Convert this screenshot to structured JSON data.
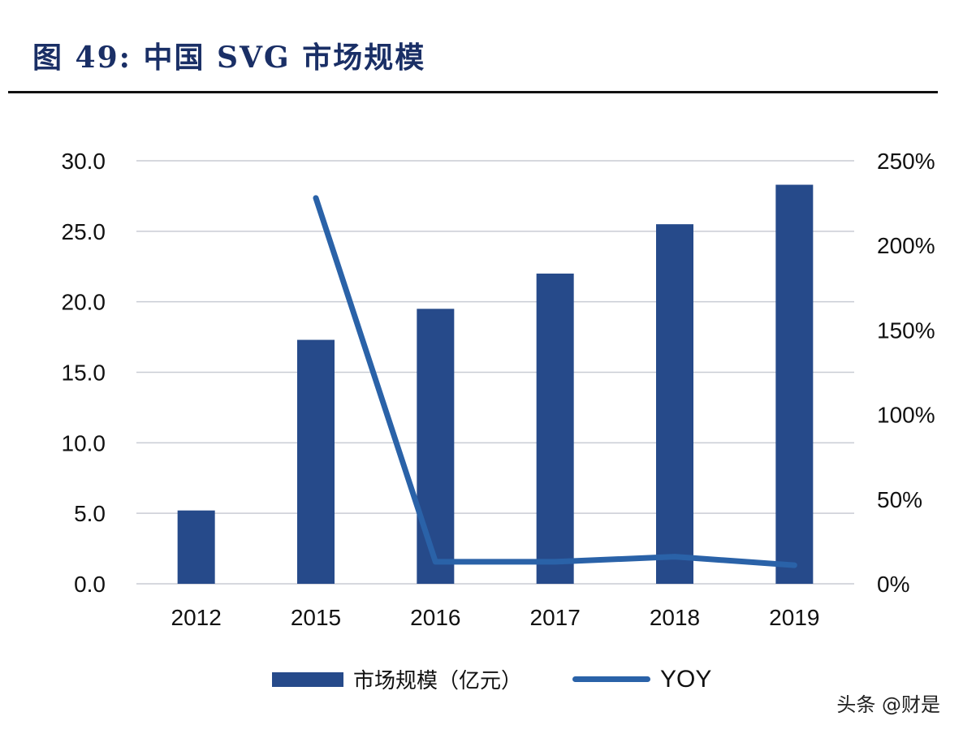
{
  "title": "图 49:  中国 SVG 市场规模",
  "watermark": "头条 @财是",
  "chart_data": {
    "type": "bar+line",
    "categories": [
      "2012",
      "2015",
      "2016",
      "2017",
      "2018",
      "2019"
    ],
    "series": [
      {
        "name": "市场规模（亿元）",
        "type": "bar",
        "axis": "left",
        "color": "#264a8a",
        "values": [
          5.2,
          17.3,
          19.5,
          22.0,
          25.5,
          28.3
        ]
      },
      {
        "name": "YOY",
        "type": "line",
        "axis": "right",
        "color": "#2a62a8",
        "values": [
          null,
          228,
          13,
          13,
          16,
          11
        ]
      }
    ],
    "left_axis": {
      "ylim": [
        0,
        30
      ],
      "ticks": [
        "0.0",
        "5.0",
        "10.0",
        "15.0",
        "20.0",
        "25.0",
        "30.0"
      ]
    },
    "right_axis": {
      "ylim": [
        0,
        250
      ],
      "ticks": [
        "0%",
        "50%",
        "100%",
        "150%",
        "200%",
        "250%"
      ]
    },
    "grid": true,
    "legend": "bottom"
  }
}
